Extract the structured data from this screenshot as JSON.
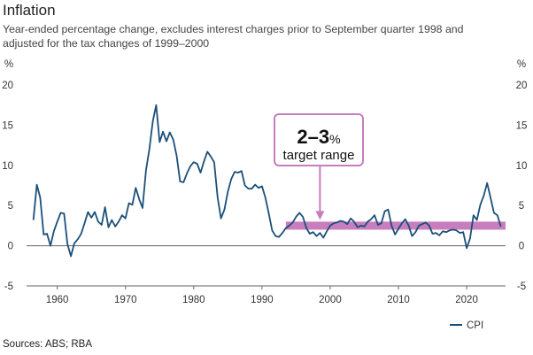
{
  "title": "Inflation",
  "subtitle": "Year-ended percentage change, excludes interest charges prior to September quarter 1998 and adjusted for the tax changes of 1999–2000",
  "source": "Sources: ABS; RBA",
  "colors": {
    "line": "#1b4f7a",
    "band": "#c77dbe",
    "annotation_border": "#c77dbe",
    "axis": "#666666"
  },
  "chart_data": {
    "type": "line",
    "title": "Inflation",
    "ylabel_left": "%",
    "ylabel_right": "%",
    "xlim": [
      1955.5,
      2025.7
    ],
    "ylim": [
      -5,
      20
    ],
    "x_ticks": [
      1960,
      1970,
      1980,
      1990,
      2000,
      2010,
      2020
    ],
    "x_tick_labels": [
      "1960",
      "1970",
      "1980",
      "1990",
      "2000",
      "2010",
      "2020"
    ],
    "y_ticks": [
      -5,
      0,
      5,
      10,
      15,
      20
    ],
    "y_tick_labels": [
      "-5",
      "0",
      "5",
      "10",
      "15",
      "20"
    ],
    "target_band": {
      "from": 1993.5,
      "to": 2025.7,
      "low": 2,
      "high": 3
    },
    "annotation": {
      "big": "2–3",
      "pct": "%",
      "small": "target range",
      "arrow_x": 1998.5
    },
    "legend": [
      "CPI"
    ],
    "series": [
      {
        "name": "CPI",
        "x": [
          1956.5,
          1957.0,
          1957.5,
          1958.0,
          1958.5,
          1959.0,
          1959.5,
          1960.0,
          1960.5,
          1961.0,
          1961.5,
          1962.0,
          1962.5,
          1963.0,
          1963.5,
          1964.0,
          1964.5,
          1965.0,
          1965.5,
          1966.0,
          1966.5,
          1967.0,
          1967.5,
          1968.0,
          1968.5,
          1969.0,
          1969.5,
          1970.0,
          1970.5,
          1971.0,
          1971.5,
          1972.0,
          1972.5,
          1973.0,
          1973.5,
          1974.0,
          1974.5,
          1975.0,
          1975.5,
          1976.0,
          1976.5,
          1977.0,
          1977.5,
          1978.0,
          1978.5,
          1979.0,
          1979.5,
          1980.0,
          1980.5,
          1981.0,
          1981.5,
          1982.0,
          1982.5,
          1983.0,
          1983.5,
          1984.0,
          1984.5,
          1985.0,
          1985.5,
          1986.0,
          1986.5,
          1987.0,
          1987.5,
          1988.0,
          1988.5,
          1989.0,
          1989.5,
          1990.0,
          1990.5,
          1991.0,
          1991.5,
          1992.0,
          1992.5,
          1993.0,
          1993.5,
          1994.0,
          1994.5,
          1995.0,
          1995.5,
          1996.0,
          1996.5,
          1997.0,
          1997.5,
          1998.0,
          1998.5,
          1999.0,
          1999.5,
          2000.0,
          2000.5,
          2001.0,
          2001.5,
          2002.0,
          2002.5,
          2003.0,
          2003.5,
          2004.0,
          2004.5,
          2005.0,
          2005.5,
          2006.0,
          2006.5,
          2007.0,
          2007.5,
          2008.0,
          2008.5,
          2009.0,
          2009.5,
          2010.0,
          2010.5,
          2011.0,
          2011.5,
          2012.0,
          2012.5,
          2013.0,
          2013.5,
          2014.0,
          2014.5,
          2015.0,
          2015.5,
          2016.0,
          2016.5,
          2017.0,
          2017.5,
          2018.0,
          2018.5,
          2019.0,
          2019.5,
          2020.0,
          2020.5,
          2021.0,
          2021.5,
          2022.0,
          2022.5,
          2023.0,
          2023.5,
          2024.0,
          2024.5,
          2025.0
        ],
        "values": [
          3.2,
          7.6,
          6.0,
          1.4,
          1.5,
          0.0,
          1.8,
          3.0,
          4.1,
          4.0,
          0.2,
          -1.3,
          0.3,
          0.8,
          1.5,
          2.8,
          4.2,
          3.5,
          4.2,
          3.0,
          2.6,
          4.8,
          2.3,
          3.2,
          2.4,
          3.0,
          3.8,
          3.4,
          5.3,
          5.1,
          7.2,
          5.8,
          4.7,
          9.4,
          12.0,
          15.5,
          17.5,
          12.9,
          14.2,
          13.0,
          14.1,
          13.2,
          11.2,
          8.0,
          7.9,
          9.0,
          9.9,
          10.4,
          10.2,
          9.1,
          10.5,
          11.7,
          11.1,
          10.4,
          6.0,
          3.4,
          4.5,
          6.7,
          8.3,
          9.2,
          9.1,
          9.3,
          7.5,
          7.1,
          7.1,
          7.6,
          7.2,
          7.4,
          6.0,
          4.0,
          1.9,
          1.2,
          1.1,
          1.6,
          2.2,
          2.5,
          2.9,
          3.6,
          4.1,
          3.6,
          2.2,
          1.5,
          1.7,
          1.2,
          1.6,
          1.0,
          1.8,
          2.5,
          2.8,
          2.9,
          3.1,
          3.0,
          2.7,
          3.4,
          3.0,
          2.3,
          2.5,
          2.4,
          3.0,
          3.3,
          3.8,
          2.6,
          2.8,
          4.3,
          4.5,
          2.5,
          1.4,
          2.1,
          2.8,
          3.3,
          2.5,
          1.2,
          1.7,
          2.5,
          2.7,
          2.9,
          2.5,
          1.5,
          1.6,
          1.3,
          1.8,
          1.7,
          1.9,
          2.0,
          1.9,
          1.6,
          1.7,
          -0.3,
          0.9,
          3.8,
          3.2,
          5.1,
          6.2,
          7.8,
          6.0,
          4.1,
          3.8,
          2.4
        ]
      }
    ]
  }
}
